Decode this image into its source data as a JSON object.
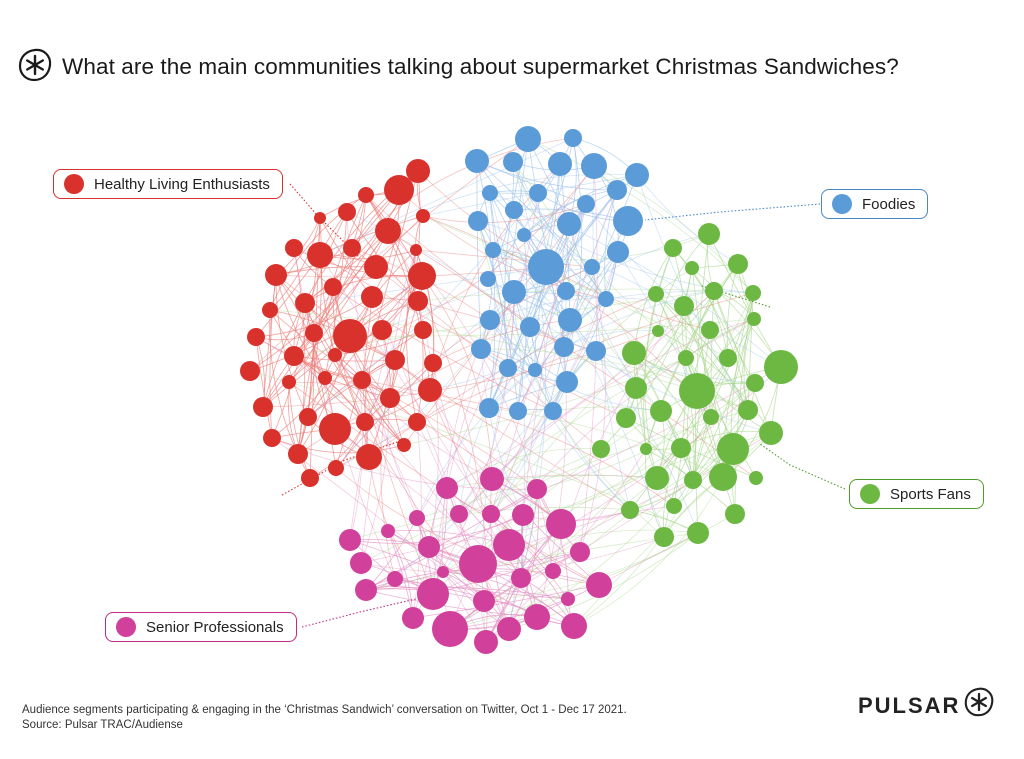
{
  "title": "What are the main communities talking about supermarket Christmas Sandwiches?",
  "communities": [
    {
      "id": "healthy",
      "label": "Healthy Living Enthusiasts",
      "color": "#d9312c",
      "edge_color": "#e97a76",
      "leader_color": "#d9312c"
    },
    {
      "id": "foodies",
      "label": "Foodies",
      "color": "#5b9bd8",
      "edge_color": "#9ec3ea",
      "leader_color": "#4a86c8"
    },
    {
      "id": "sports",
      "label": "Sports Fans",
      "color": "#6cb843",
      "edge_color": "#a9d78e",
      "leader_color": "#4f9a2a"
    },
    {
      "id": "senior",
      "label": "Senior Professionals",
      "color": "#d1409a",
      "edge_color": "#e48fc2",
      "leader_color": "#c22a85"
    }
  ],
  "footer": {
    "caption": "Audience segments participating & engaging in the ‘Christmas Sandwich’ conversation on Twitter, Oct 1  - Dec 17 2021.",
    "source": "Source: Pulsar TRAC/Audiense"
  },
  "brand": {
    "name": "PULSAR",
    "logo_icon": "pulsar-asterisk-icon"
  }
}
